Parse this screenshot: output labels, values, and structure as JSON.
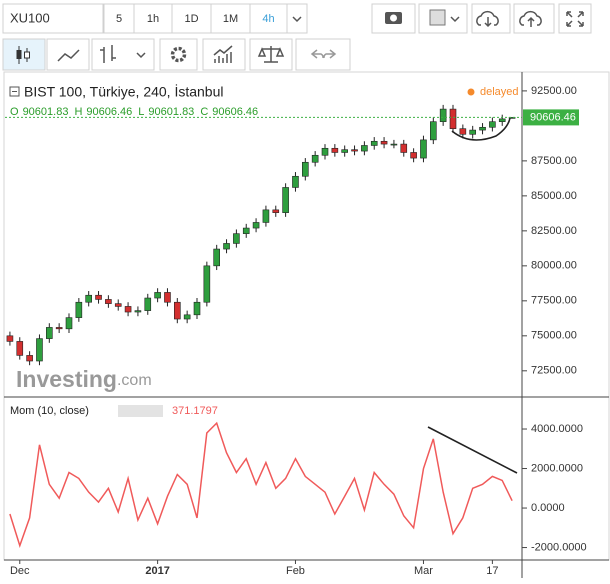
{
  "toolbar": {
    "symbol": "XU100",
    "intervals": [
      "5",
      "1h",
      "1D",
      "1M",
      "4h"
    ],
    "active_interval": 4
  },
  "chart_data": [
    {
      "type": "candlestick",
      "title": "BIST 100, Türkiye, 240, İstanbul",
      "status": "delayed",
      "watermark_brand": "Investing",
      "watermark_suffix": ".com",
      "ohlc_labels": [
        "O",
        "H",
        "L",
        "C"
      ],
      "up_color": "#2e9e3e",
      "down_color": "#d32f2f",
      "last_price_color": "#3cb043",
      "open": [
        75000,
        74600,
        73600,
        73200,
        74800,
        75600,
        75500,
        76300,
        77400,
        77900,
        77600,
        77300,
        77100,
        76700,
        76800,
        77700,
        78100,
        77400,
        76200,
        76500,
        77400,
        80000,
        81200,
        81600,
        82300,
        82700,
        83100,
        84000,
        83800,
        85600,
        86400,
        87400,
        87900,
        88400,
        88100,
        88300,
        88200,
        88600,
        88900,
        88700,
        88700,
        88100,
        87700,
        89000,
        90300,
        91200,
        89800,
        89400,
        89700,
        89900,
        90300,
        90601.83
      ],
      "high": [
        75300,
        74900,
        73900,
        75100,
        75900,
        75900,
        76600,
        77700,
        78200,
        78200,
        77900,
        77600,
        77400,
        77100,
        78000,
        78400,
        78400,
        77700,
        76800,
        77700,
        80300,
        81500,
        81900,
        82600,
        83000,
        83400,
        84300,
        84300,
        85900,
        86700,
        87700,
        88200,
        88700,
        88700,
        88600,
        88600,
        88900,
        89200,
        89200,
        89000,
        89000,
        88400,
        89300,
        90600,
        91500,
        91500,
        90100,
        90000,
        90200,
        90600,
        90800,
        90606.46
      ],
      "low": [
        74300,
        73300,
        72900,
        72900,
        74500,
        75200,
        75200,
        76000,
        77100,
        77300,
        77000,
        76800,
        76400,
        76400,
        76500,
        77400,
        77100,
        75900,
        75900,
        76200,
        77100,
        79700,
        80900,
        81300,
        82000,
        82400,
        82800,
        83500,
        83500,
        85300,
        86100,
        87100,
        87600,
        87800,
        87800,
        87900,
        87900,
        88300,
        88400,
        88400,
        87800,
        87400,
        87400,
        88700,
        90000,
        89500,
        89100,
        89100,
        89400,
        89600,
        90000,
        90601.83
      ],
      "close": [
        74600,
        73600,
        73200,
        74800,
        75600,
        75500,
        76300,
        77400,
        77900,
        77600,
        77300,
        77100,
        76700,
        76800,
        77700,
        78100,
        77400,
        76200,
        76500,
        77400,
        80000,
        81200,
        81600,
        82300,
        82700,
        83100,
        84000,
        83800,
        85600,
        86400,
        87400,
        87900,
        88400,
        88100,
        88300,
        88200,
        88600,
        88900,
        88700,
        88700,
        88100,
        87700,
        89000,
        90300,
        91200,
        89800,
        89400,
        89700,
        89900,
        90300,
        90500,
        90606.46
      ],
      "ylim": [
        70700,
        93850
      ],
      "yticks": [
        {
          "value": 72500,
          "label": "72500.00"
        },
        {
          "value": 75000,
          "label": "75000.00"
        },
        {
          "value": 77500,
          "label": "77500.00"
        },
        {
          "value": 80000,
          "label": "80000.00"
        },
        {
          "value": 82500,
          "label": "82500.00"
        },
        {
          "value": 85000,
          "label": "85000.00"
        },
        {
          "value": 87500,
          "label": "87500.00"
        },
        {
          "value": 92500,
          "label": "92500.00"
        }
      ]
    },
    {
      "type": "line",
      "title": "Mom (10, close)",
      "categories": [
        null,
        "Dec",
        null,
        null,
        null,
        null,
        null,
        null,
        null,
        null,
        null,
        null,
        null,
        null,
        null,
        "2017",
        null,
        null,
        null,
        null,
        null,
        null,
        null,
        null,
        null,
        null,
        null,
        null,
        null,
        "Feb",
        null,
        null,
        null,
        null,
        null,
        null,
        null,
        null,
        null,
        null,
        null,
        null,
        "Mar",
        null,
        null,
        null,
        null,
        null,
        null,
        "17",
        null,
        null
      ],
      "series": [
        {
          "color": "#f05a5a",
          "values": [
            -300,
            -1900,
            -500,
            3200,
            1200,
            500,
            1800,
            1500,
            800,
            300,
            1000,
            -200,
            1500,
            -600,
            500,
            -800,
            600,
            1700,
            1200,
            -500,
            3800,
            4300,
            2800,
            1800,
            2500,
            1200,
            2300,
            1000,
            1500,
            2500,
            1600,
            1200,
            800,
            -300,
            600,
            1500,
            -100,
            1800,
            1200,
            700,
            -400,
            -1000,
            2000,
            3500,
            800,
            -1300,
            -500,
            1000,
            1200,
            1600,
            1400,
            371.1797
          ]
        }
      ],
      "ylim": [
        -2630,
        5570
      ],
      "yticks": [
        {
          "value": -2000,
          "label": "-2000.0000"
        },
        {
          "value": 0,
          "label": "0.0000"
        },
        {
          "value": 2000,
          "label": "2000.0000"
        },
        {
          "value": 4000,
          "label": "4000.0000"
        }
      ]
    }
  ]
}
